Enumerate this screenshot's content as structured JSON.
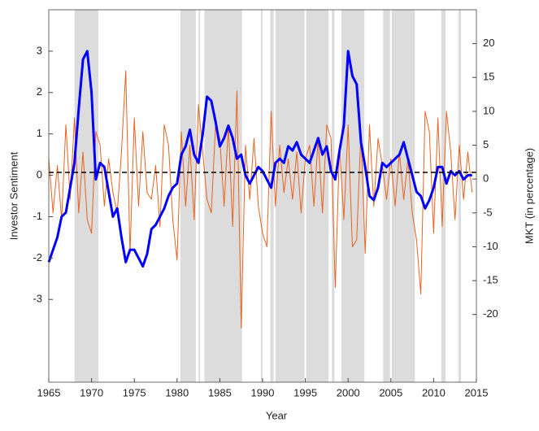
{
  "chart_data": {
    "type": "line",
    "xlabel": "Year",
    "ylabel": "Investor Sentiment",
    "y2label": "MKT (in percentage)",
    "x": [
      1965,
      1965.5,
      1966,
      1966.5,
      1967,
      1967.5,
      1968,
      1968.5,
      1969,
      1969.5,
      1970,
      1970.5,
      1971,
      1971.5,
      1972,
      1972.5,
      1973,
      1973.5,
      1974,
      1974.5,
      1975,
      1975.5,
      1976,
      1976.5,
      1977,
      1977.5,
      1978,
      1978.5,
      1979,
      1979.5,
      1980,
      1980.5,
      1981,
      1981.5,
      1982,
      1982.5,
      1983,
      1983.5,
      1984,
      1984.5,
      1985,
      1985.5,
      1986,
      1986.5,
      1987,
      1987.5,
      1988,
      1988.5,
      1989,
      1989.5,
      1990,
      1990.5,
      1991,
      1991.5,
      1992,
      1992.5,
      1993,
      1993.5,
      1994,
      1994.5,
      1995,
      1995.5,
      1996,
      1996.5,
      1997,
      1997.5,
      1998,
      1998.5,
      1999,
      1999.5,
      2000,
      2000.5,
      2001,
      2001.5,
      2002,
      2002.5,
      2003,
      2003.5,
      2004,
      2004.5,
      2005,
      2005.5,
      2006,
      2006.5,
      2007,
      2007.5,
      2008,
      2008.5,
      2009,
      2009.5,
      2010,
      2010.5,
      2011,
      2011.5,
      2012,
      2012.5,
      2013,
      2013.5,
      2014,
      2014.5
    ],
    "series": [
      {
        "color": "#e8631f",
        "axis": "y2",
        "width": 1,
        "values": [
          3,
          -5,
          2,
          -6,
          8,
          -3,
          9,
          -5,
          4,
          -6,
          -8,
          7,
          5,
          -4,
          3,
          -2,
          -5,
          4,
          16,
          -11,
          9,
          -4,
          7,
          -2,
          -3,
          2,
          -7,
          8,
          5,
          -6,
          -12,
          7,
          -4,
          5,
          -6,
          11,
          4,
          -3,
          -5,
          8,
          6,
          -4,
          8,
          -7,
          13,
          -22,
          5,
          -3,
          6,
          -4,
          -8,
          -10,
          10,
          -4,
          5,
          -2,
          3,
          -3,
          4,
          -5,
          3,
          5,
          -4,
          6,
          -5,
          8,
          6,
          -16,
          5,
          -6,
          8,
          -10,
          -9,
          7,
          -11,
          8,
          -4,
          6,
          2,
          -3,
          3,
          -4,
          4,
          -3,
          3,
          -5,
          -9,
          -17,
          10,
          7,
          -8,
          9,
          -7,
          10,
          4,
          -6,
          5,
          -3,
          4,
          -2
        ]
      },
      {
        "color": "#0000ff",
        "axis": "y",
        "width": 3,
        "values": [
          -2.1,
          -1.8,
          -1.5,
          -1.0,
          -0.9,
          -0.3,
          0.3,
          1.6,
          2.8,
          3.0,
          2.0,
          -0.1,
          0.3,
          0.2,
          -0.4,
          -1.0,
          -0.8,
          -1.5,
          -2.1,
          -1.8,
          -1.8,
          -2.0,
          -2.2,
          -1.9,
          -1.3,
          -1.2,
          -1.0,
          -0.8,
          -0.5,
          -0.3,
          -0.2,
          0.5,
          0.7,
          1.1,
          0.5,
          0.3,
          1.0,
          1.9,
          1.8,
          1.3,
          0.7,
          0.9,
          1.2,
          0.9,
          0.4,
          0.5,
          0.0,
          -0.2,
          0.0,
          0.2,
          0.1,
          -0.1,
          -0.3,
          0.3,
          0.4,
          0.3,
          0.7,
          0.6,
          0.8,
          0.5,
          0.4,
          0.3,
          0.6,
          0.9,
          0.5,
          0.7,
          0.1,
          -0.1,
          0.6,
          1.2,
          3.0,
          2.4,
          2.2,
          0.8,
          0.2,
          -0.5,
          -0.6,
          -0.3,
          0.3,
          0.2,
          0.3,
          0.4,
          0.5,
          0.8,
          0.4,
          0.0,
          -0.4,
          -0.5,
          -0.8,
          -0.6,
          -0.3,
          0.2,
          0.2,
          -0.2,
          0.1,
          0.0,
          0.1,
          -0.1,
          0.0,
          0.0
        ]
      }
    ],
    "shaded_periods": [
      [
        1968,
        1970.8
      ],
      [
        1980.4,
        1982.2
      ],
      [
        1982.5,
        1982.7
      ],
      [
        1983.2,
        1987.6
      ],
      [
        1989.8,
        1990.0
      ],
      [
        1990.9,
        1991.3
      ],
      [
        1991.5,
        1994.9
      ],
      [
        1995.1,
        1997.7
      ],
      [
        1998.1,
        1998.4
      ],
      [
        1999.2,
        2001.9
      ],
      [
        2004.1,
        2004.9
      ],
      [
        2005.1,
        2007.8
      ],
      [
        2010.9,
        2011.4
      ],
      [
        2012.9,
        2013.2
      ]
    ],
    "shade_color": "#dcdcdc",
    "hline": 0.07,
    "hline_color": "#000000",
    "xlim": [
      1965,
      2015
    ],
    "xticks": [
      1965,
      1970,
      1975,
      1980,
      1985,
      1990,
      1995,
      2000,
      2005,
      2010,
      2015
    ],
    "ylim": [
      -5,
      4
    ],
    "yticks": [
      -3,
      -2,
      -1,
      0,
      1,
      2,
      3
    ],
    "y2lim": [
      -30,
      25
    ],
    "y2ticks": [
      -20,
      -15,
      -10,
      -5,
      0,
      5,
      10,
      15,
      20
    ]
  }
}
